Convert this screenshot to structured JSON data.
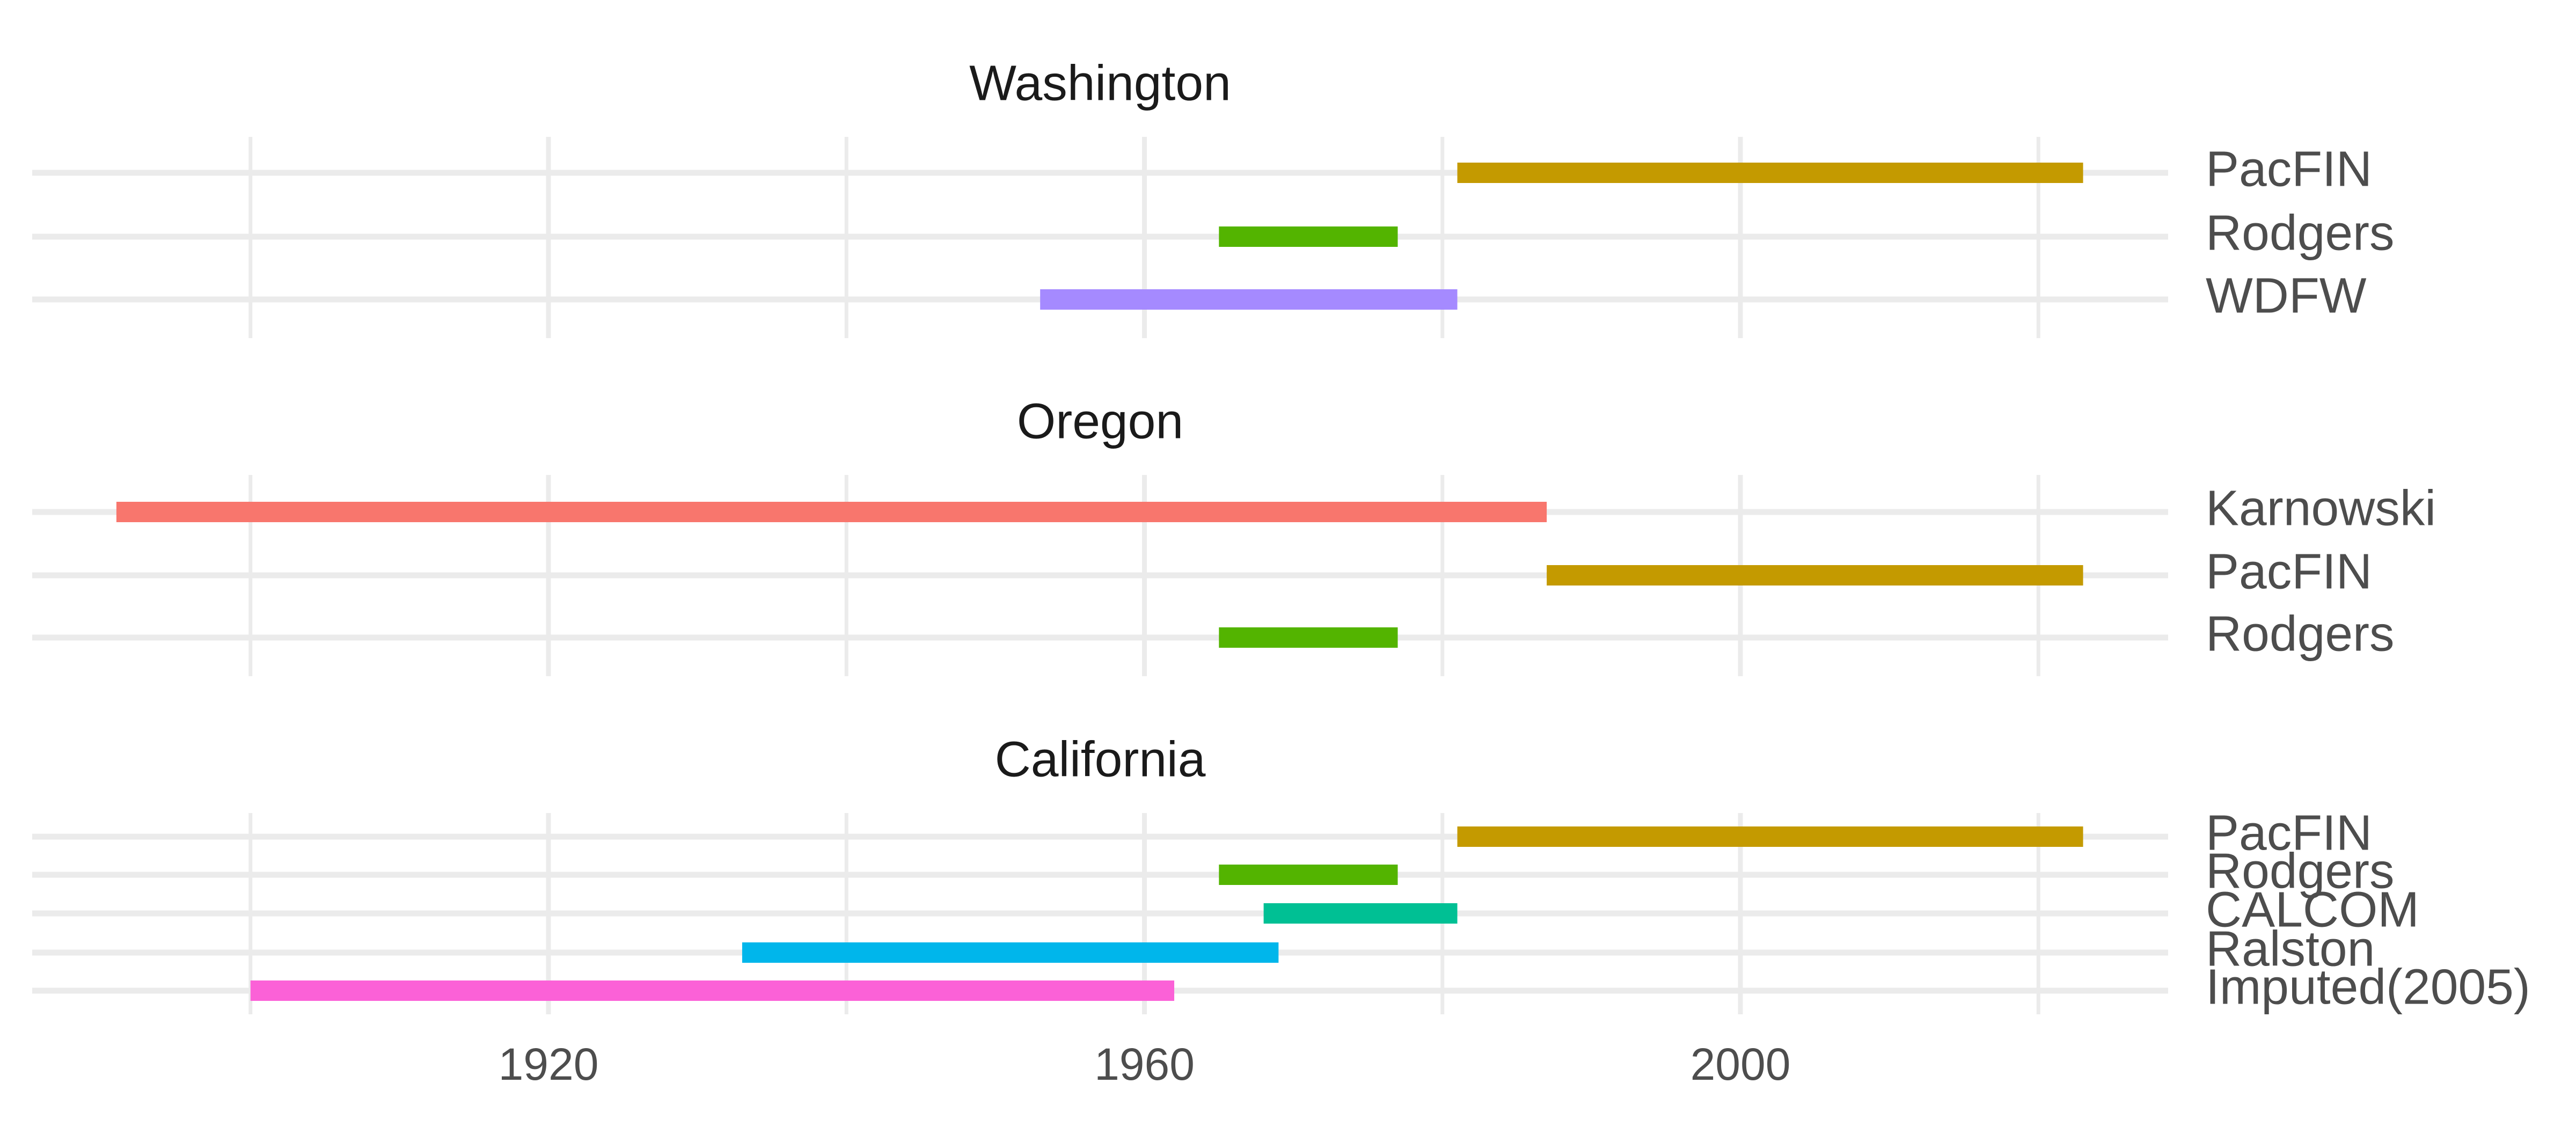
{
  "chart_data": {
    "type": "bar",
    "subtype": "horizontal-range",
    "xlim": [
      1885,
      2028
    ],
    "x_ticks": [
      1920,
      1960,
      2000
    ],
    "x_gridlines": [
      1900,
      1920,
      1940,
      1960,
      1980,
      2000,
      2020
    ],
    "grid": true,
    "legend": "none",
    "panels": [
      {
        "title": "Washington",
        "series": [
          {
            "name": "PacFIN",
            "start": 1981,
            "end": 2023,
            "color": "#C49A00"
          },
          {
            "name": "Rodgers",
            "start": 1965,
            "end": 1977,
            "color": "#53B400"
          },
          {
            "name": "WDFW",
            "start": 1953,
            "end": 1981,
            "color": "#A58AFF"
          }
        ]
      },
      {
        "title": "Oregon",
        "series": [
          {
            "name": "Karnowski",
            "start": 1891,
            "end": 1987,
            "color": "#F8766D"
          },
          {
            "name": "PacFIN",
            "start": 1987,
            "end": 2023,
            "color": "#C49A00"
          },
          {
            "name": "Rodgers",
            "start": 1965,
            "end": 1977,
            "color": "#53B400"
          }
        ]
      },
      {
        "title": "California",
        "series": [
          {
            "name": "PacFIN",
            "start": 1981,
            "end": 2023,
            "color": "#C49A00"
          },
          {
            "name": "Rodgers",
            "start": 1965,
            "end": 1977,
            "color": "#53B400"
          },
          {
            "name": "CALCOM",
            "start": 1968,
            "end": 1981,
            "color": "#00C094"
          },
          {
            "name": "Ralston",
            "start": 1933,
            "end": 1969,
            "color": "#00B6EB"
          },
          {
            "name": "Imputed(2005)",
            "start": 1900,
            "end": 1962,
            "color": "#FB61D7"
          }
        ]
      }
    ]
  }
}
